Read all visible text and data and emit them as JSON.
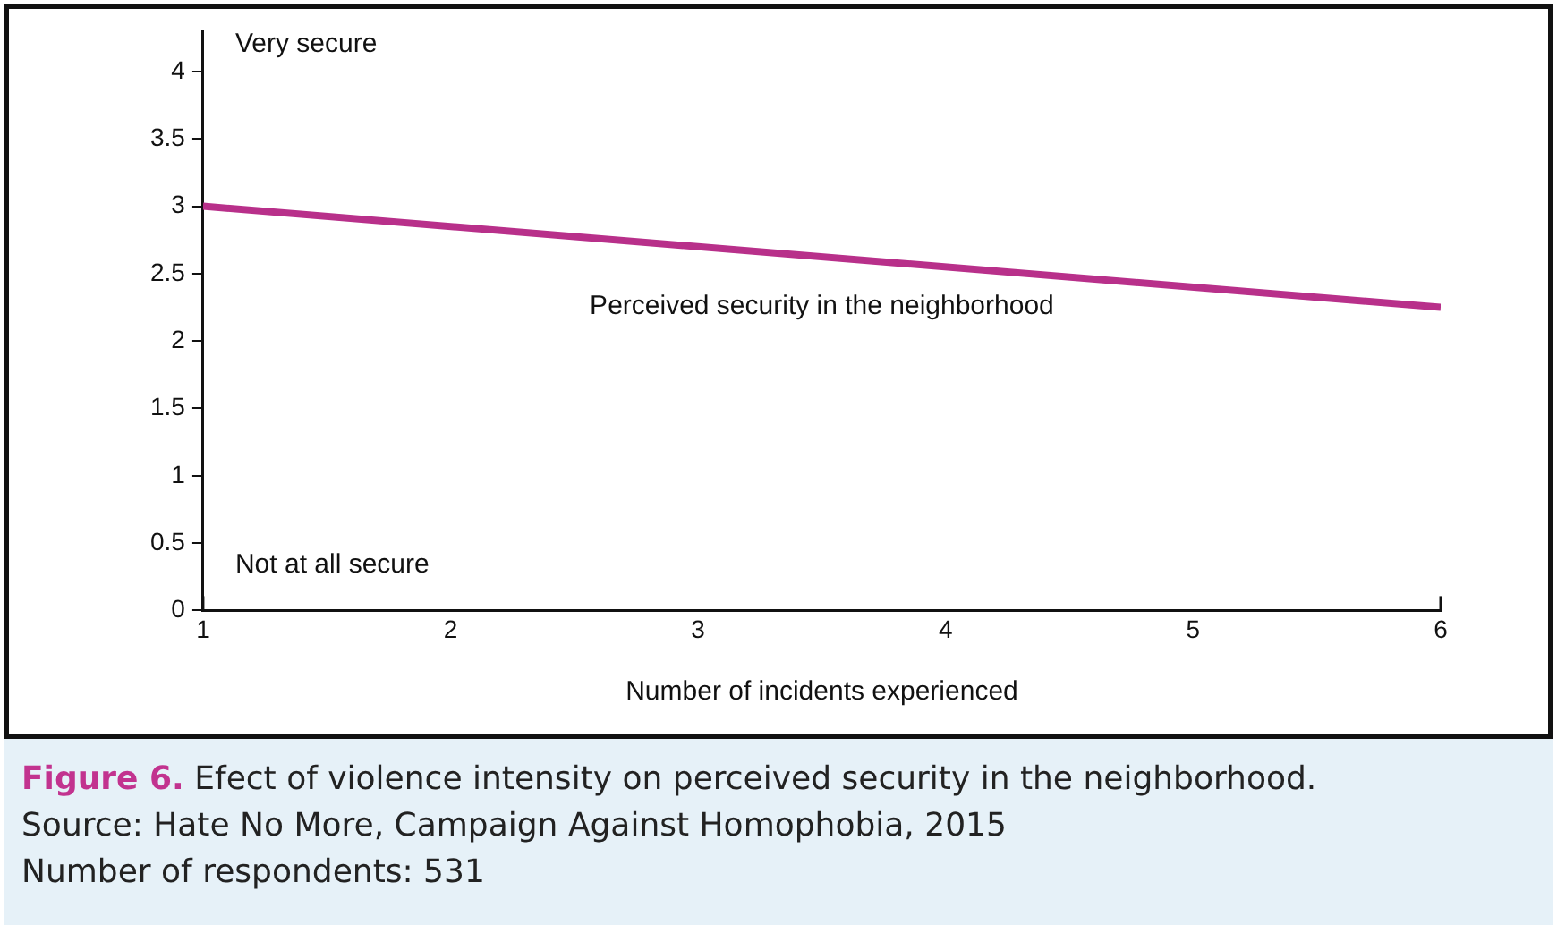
{
  "chart_data": {
    "type": "line",
    "title": "Figure 6. Efect of violence intensity on perceived security in the neighborhood.",
    "xlabel": "Number of incidents experienced",
    "x": [
      1,
      6
    ],
    "series": [
      {
        "name": "Perceived security in the neighborhood",
        "color": "#b8308a",
        "values": [
          3.0,
          2.25
        ]
      }
    ],
    "xlim": [
      1,
      6
    ],
    "xticks": [
      1,
      2,
      3,
      4,
      5,
      6
    ],
    "ylim": [
      0,
      4.3
    ],
    "yticks": [
      0,
      0.5,
      1,
      1.5,
      2,
      2.5,
      3,
      3.5,
      4
    ],
    "grid": false,
    "legend": false,
    "marker": "none",
    "line_style": "solid",
    "annotations": [
      "Very secure",
      "Not at all secure",
      "Source: Hate No More, Campaign Against Homophobia, 2015",
      "Number of respondents: 531"
    ]
  }
}
